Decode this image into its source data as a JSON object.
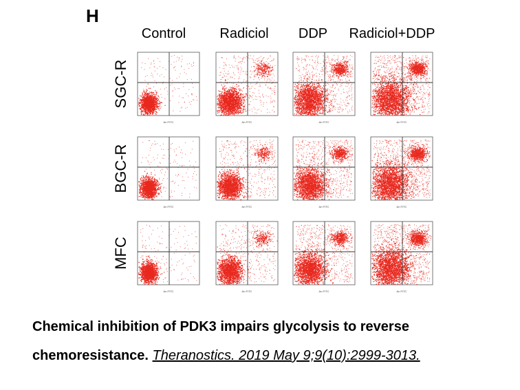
{
  "panel_letter": "H",
  "columns": [
    "Control",
    "Radiciol",
    "DDP",
    "Radiciol+DDP"
  ],
  "rows": [
    "SGC-R",
    "BGC-R",
    "MFC"
  ],
  "axis_label": "An FITC",
  "colors": {
    "dots": "#e8281e",
    "lines": "#333333",
    "frame": "#555555"
  },
  "caption": {
    "line1": "Chemical inhibition of PDK3 impairs glycolysis to reverse",
    "line2_bold": "chemoresistance.",
    "citation": "Theranostics. 2019 May 9;9(10):2999-3013."
  }
}
